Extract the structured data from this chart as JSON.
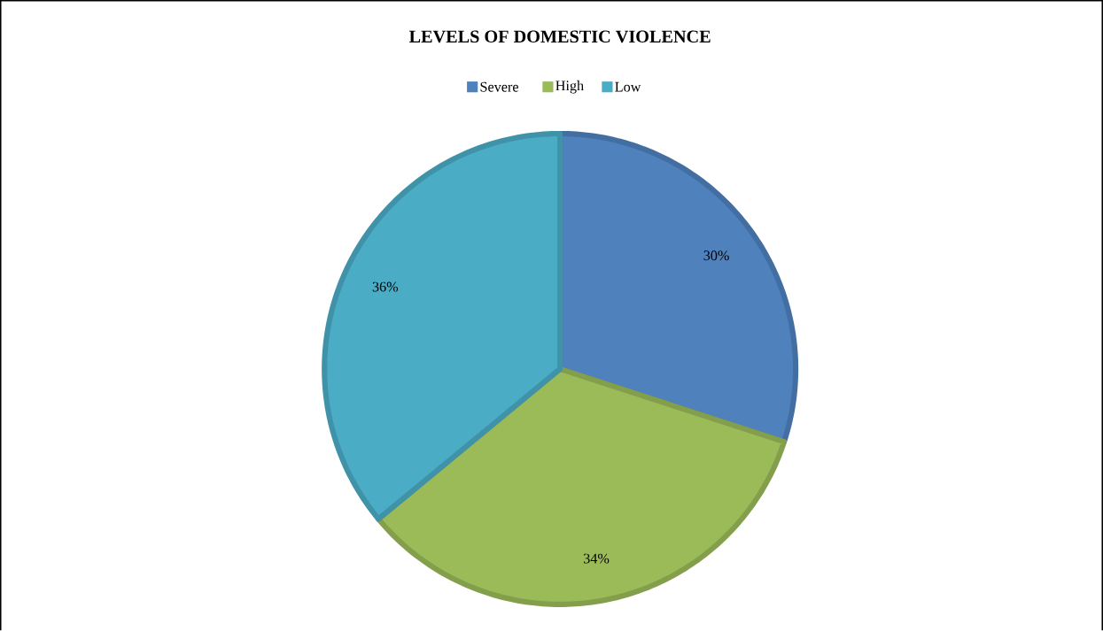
{
  "chart_data": {
    "type": "pie",
    "title": "LEVELS OF DOMESTIC VIOLENCE",
    "categories": [
      "Severe",
      "High",
      "Low"
    ],
    "values": [
      30,
      34,
      36
    ],
    "colors": [
      "#4f81bd",
      "#9bbb59",
      "#4bacc6"
    ],
    "value_labels": [
      "30%",
      "34%",
      "36%"
    ],
    "legend": "top"
  }
}
